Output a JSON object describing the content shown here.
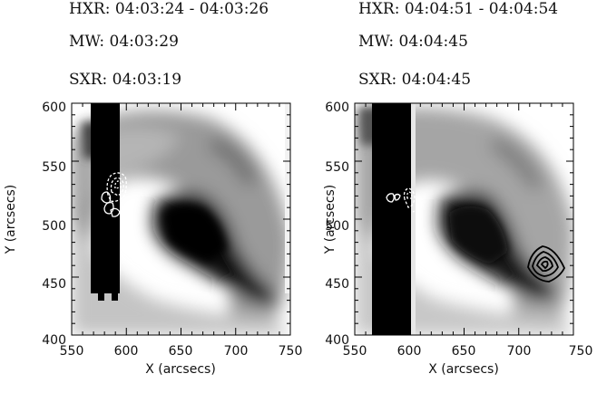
{
  "panels": [
    {
      "hxr": "HXR: 04:03:24 - 04:03:26",
      "mw": "MW: 04:03:29",
      "sxr": "SXR: 04:03:19",
      "xlabel": "X (arcsecs)",
      "ylabel": "Y (arcsecs)",
      "xticks": [
        "550",
        "600",
        "650",
        "700",
        "750"
      ],
      "yticks": [
        "400",
        "450",
        "500",
        "550",
        "600"
      ]
    },
    {
      "hxr": "HXR: 04:04:51 - 04:04:54",
      "mw": "MW: 04:04:45",
      "sxr": "SXR: 04:04:45",
      "xlabel": "X (arcsecs)",
      "ylabel": "Y (arcsecs)",
      "xticks": [
        "550",
        "600",
        "650",
        "700",
        "750"
      ],
      "yticks": [
        "400",
        "450",
        "500",
        "550",
        "600"
      ]
    }
  ]
}
